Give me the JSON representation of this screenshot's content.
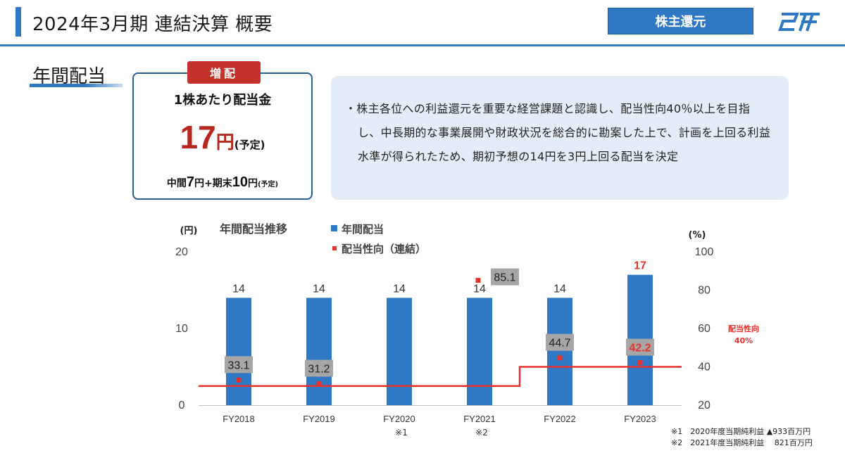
{
  "header": {
    "title": "2024年3月期 連結決算  概要",
    "section": "株主還元"
  },
  "section": {
    "title": "年間配当"
  },
  "dividend_box": {
    "tag": "増配",
    "label": "1株あたり配当金",
    "amount": "17",
    "unit": "円",
    "estimate": "(予定)",
    "breakdown": {
      "interim_label": "中間",
      "interim_value": "7",
      "unit1": "円+",
      "final_label": "期末",
      "final_value": "10",
      "unit2": "円",
      "estimate": "(予定)"
    }
  },
  "info": {
    "text": "・株主各位への利益還元を重要な経営課題と認識し、配当性向40％以上を目指し、中長期的な事業展開や財政状況を総合的に勘案した上で、計画を上回る利益水準が得られたため、期初予想の14円を3円上回る配当を決定"
  },
  "chart_data": {
    "type": "bar",
    "title": "年間配当推移",
    "y_unit_left": "(円)",
    "y_unit_right": "(%)",
    "categories": [
      "FY2018",
      "FY2019",
      "FY2020",
      "FY2021",
      "FY2022",
      "FY2023"
    ],
    "category_notes": [
      "",
      "",
      "※1",
      "※2",
      "",
      ""
    ],
    "series": [
      {
        "name": "年間配当",
        "type": "bar",
        "axis": "left",
        "values": [
          14,
          14,
          14,
          14,
          14,
          17
        ],
        "labels": [
          "14",
          "14",
          "14",
          "14",
          "14",
          "17"
        ],
        "color": "#2e78c4"
      },
      {
        "name": "配当性向（連結）",
        "type": "scatter",
        "axis": "right",
        "values": [
          33.1,
          31.2,
          null,
          85.1,
          44.7,
          42.2
        ],
        "labels": [
          "33.1",
          "31.2",
          "",
          "85.1",
          "44.7",
          "42.2"
        ],
        "color": "#e8312a"
      }
    ],
    "ylim_left": [
      0,
      20
    ],
    "yticks_left": [
      "0",
      "10",
      "20"
    ],
    "ylim_right": [
      20,
      100
    ],
    "yticks_right": [
      "20",
      "40",
      "60",
      "80",
      "100"
    ],
    "target_line": {
      "label": "配当性向",
      "label2": "40%",
      "segments": [
        {
          "from": "FY2018",
          "to": "FY2021",
          "value": 30
        },
        {
          "from": "FY2022",
          "to": "FY2023",
          "value": 40
        }
      ],
      "color": "#e8312a"
    },
    "highlight_color": "#e8312a"
  },
  "footnotes": [
    "※1　2020年度当期純利益 ▲933百万円",
    "※2　2021年度当期純利益 　821百万円"
  ]
}
